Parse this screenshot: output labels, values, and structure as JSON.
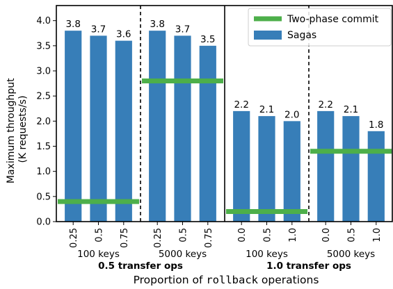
{
  "chart_data": {
    "type": "bar",
    "ylabel_line1": "Maximum throughput",
    "ylabel_line2": "(K requests/s)",
    "xlabel_prefix": "Proportion of ",
    "xlabel_code": "rollback",
    "xlabel_suffix": " operations",
    "ylim": [
      0,
      4.3
    ],
    "yticks": [
      "0.0",
      "0.5",
      "1.0",
      "1.5",
      "2.0",
      "2.5",
      "3.0",
      "3.5",
      "4.0"
    ],
    "grid": false,
    "legend_position": "top-right",
    "legend": [
      {
        "label": "Two-phase commit",
        "color": "#4daf4a",
        "kind": "line"
      },
      {
        "label": "Sagas",
        "color": "#377eb8",
        "kind": "bar"
      }
    ],
    "bar_color": "#377eb8",
    "line_color": "#4daf4a",
    "super_groups": [
      {
        "label": "0.5 transfer ops",
        "groups": [
          {
            "label": "100 keys",
            "categories": [
              "0.25",
              "0.5",
              "0.75"
            ],
            "sagas": [
              3.8,
              3.7,
              3.6
            ],
            "sagas_labels": [
              "3.8",
              "3.7",
              "3.6"
            ],
            "two_phase_commit": 0.4
          },
          {
            "label": "5000 keys",
            "categories": [
              "0.25",
              "0.5",
              "0.75"
            ],
            "sagas": [
              3.8,
              3.7,
              3.5
            ],
            "sagas_labels": [
              "3.8",
              "3.7",
              "3.5"
            ],
            "two_phase_commit": 2.8
          }
        ]
      },
      {
        "label": "1.0 transfer ops",
        "groups": [
          {
            "label": "100 keys",
            "categories": [
              "0.0",
              "0.5",
              "1.0"
            ],
            "sagas": [
              2.2,
              2.1,
              2.0
            ],
            "sagas_labels": [
              "2.2",
              "2.1",
              "2.0"
            ],
            "two_phase_commit": 0.2
          },
          {
            "label": "5000 keys",
            "categories": [
              "0.0",
              "0.5",
              "1.0"
            ],
            "sagas": [
              2.2,
              2.1,
              1.8
            ],
            "sagas_labels": [
              "2.2",
              "2.1",
              "1.8"
            ],
            "two_phase_commit": 1.4
          }
        ]
      }
    ]
  }
}
